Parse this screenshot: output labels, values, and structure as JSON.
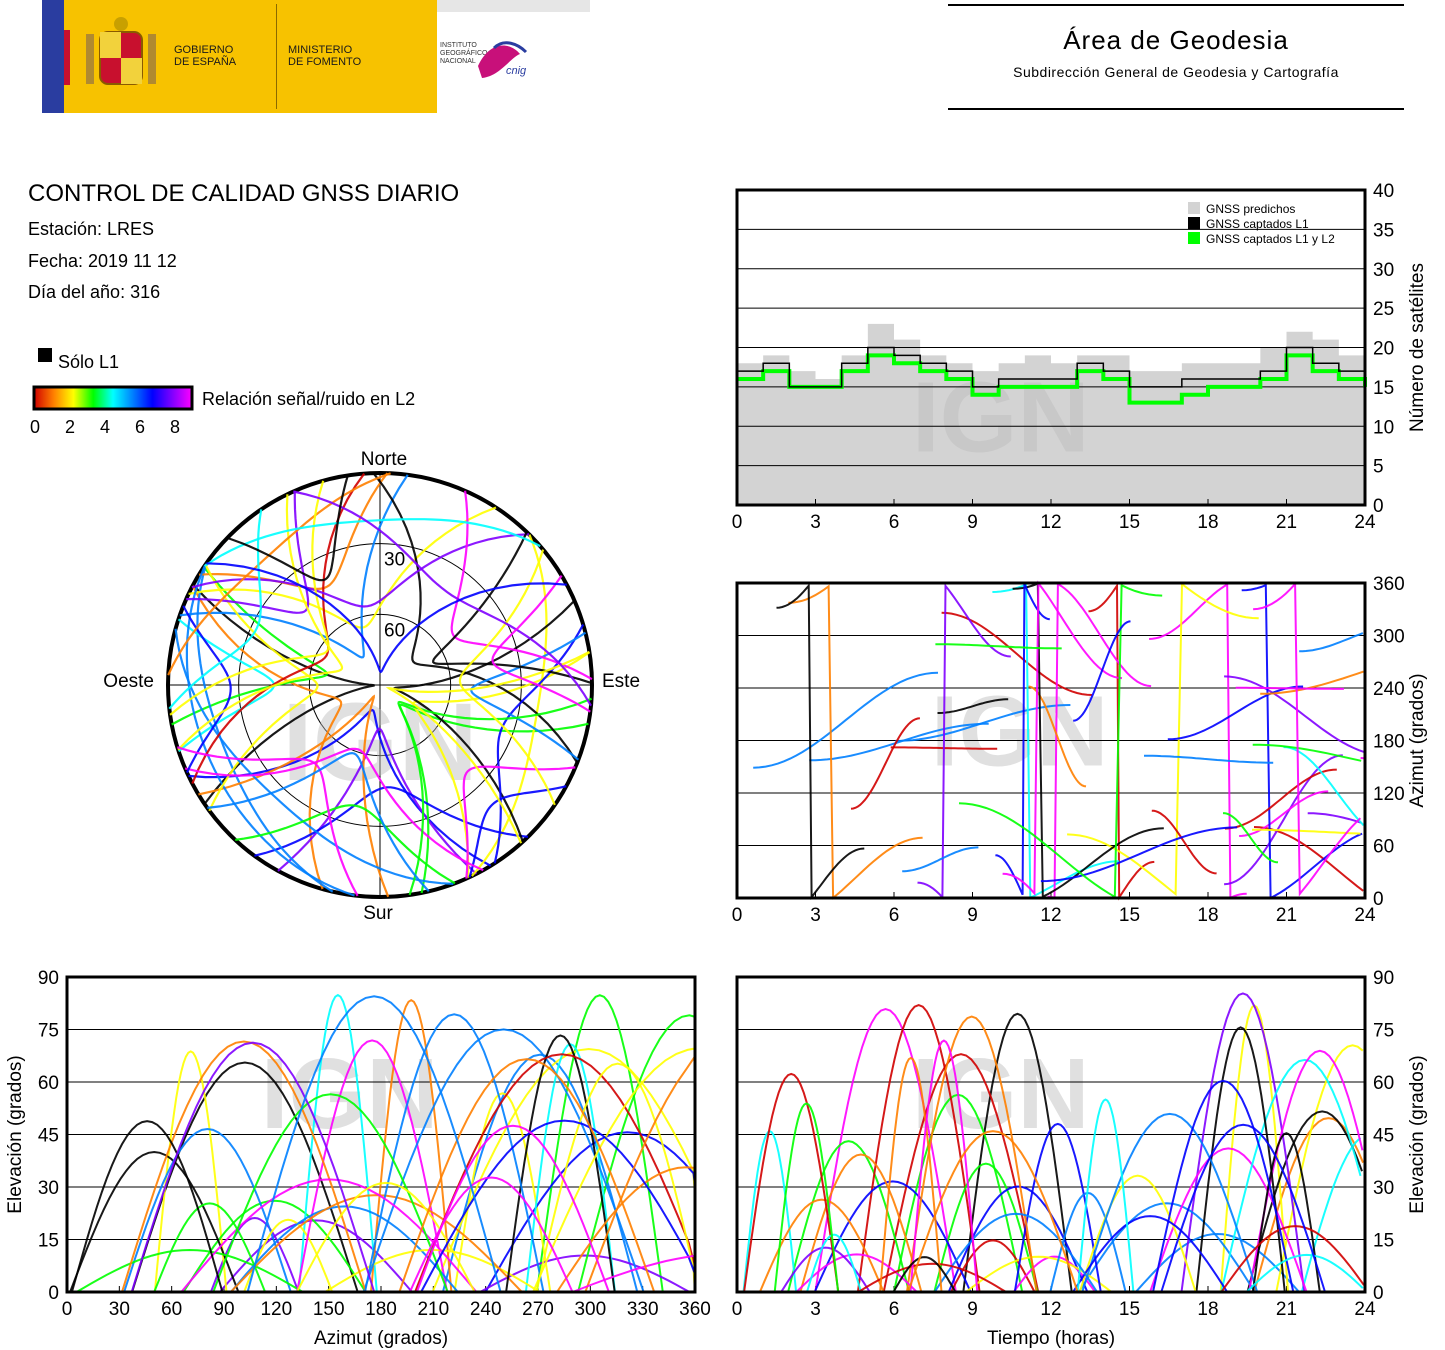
{
  "header": {
    "gov_line1": "GOBIERNO",
    "gov_line2": "DE ESPAÑA",
    "min_line1": "MINISTERIO",
    "min_line2": "DE FOMENTO",
    "inst_line1": "INSTITUTO",
    "inst_line2": "GEOGRÁFICO",
    "inst_line3": "NACIONAL",
    "cnig": "cnig",
    "area_title": "Área de Geodesia",
    "area_subtitle": "Subdirección General de Geodesia y Cartografía"
  },
  "report": {
    "title": "CONTROL DE CALIDAD GNSS DIARIO",
    "station": "Estación: LRES",
    "date": "Fecha: 2019 11 12",
    "doy": "Día del año: 316"
  },
  "legend": {
    "l1_only": "Sólo L1",
    "snr_label": "Relación señal/ruido en L2",
    "snr_ticks": [
      "0",
      "2",
      "4",
      "6",
      "8"
    ],
    "snr_colors": [
      "#d00000",
      "#ff8000",
      "#ffff00",
      "#00ff00",
      "#00ffff",
      "#0080ff",
      "#0000ff",
      "#8000ff",
      "#ff00ff"
    ]
  },
  "watermark": "IGN",
  "chart_data": [
    {
      "type": "area",
      "id": "satellites",
      "ylabel": "Número de satélites",
      "xlim": [
        0,
        24
      ],
      "ylim": [
        0,
        40
      ],
      "xticks": [
        "0",
        "3",
        "6",
        "9",
        "12",
        "15",
        "18",
        "21",
        "24"
      ],
      "yticks": [
        "0",
        "5",
        "10",
        "15",
        "20",
        "25",
        "30",
        "35",
        "40"
      ],
      "legend_position": "top-right",
      "x": [
        0,
        1,
        2,
        3,
        4,
        5,
        6,
        7,
        8,
        9,
        10,
        11,
        12,
        13,
        14,
        15,
        16,
        17,
        18,
        19,
        20,
        21,
        22,
        23,
        24
      ],
      "series": [
        {
          "name": "GNSS predichos",
          "color": "#d3d3d3",
          "values": [
            18,
            19,
            17,
            16,
            19,
            23,
            21,
            19,
            18,
            17,
            18,
            19,
            18,
            19,
            19,
            17,
            17,
            18,
            18,
            18,
            20,
            22,
            21,
            19,
            18
          ]
        },
        {
          "name": "GNSS captados L1",
          "color": "#000000",
          "values": [
            17,
            18,
            15,
            15,
            18,
            20,
            19,
            18,
            17,
            15,
            16,
            16,
            16,
            18,
            17,
            15,
            15,
            16,
            16,
            16,
            17,
            20,
            18,
            17,
            16
          ]
        },
        {
          "name": "GNSS captados L1 y L2",
          "color": "#00ff00",
          "values": [
            16,
            17,
            15,
            15,
            17,
            19,
            18,
            17,
            16,
            14,
            15,
            15,
            15,
            17,
            16,
            13,
            13,
            14,
            15,
            15,
            16,
            19,
            17,
            16,
            15
          ]
        }
      ]
    },
    {
      "type": "scatter",
      "id": "skyplot",
      "directions": {
        "north": "Norte",
        "south": "Sur",
        "east": "Este",
        "west": "Oeste"
      },
      "ring_labels": [
        "30",
        "60"
      ]
    },
    {
      "type": "scatter",
      "id": "azimuth_time",
      "ylabel": "Azimut (grados)",
      "xlim": [
        0,
        24
      ],
      "ylim": [
        0,
        360
      ],
      "xticks": [
        "0",
        "3",
        "6",
        "9",
        "12",
        "15",
        "18",
        "21",
        "24"
      ],
      "yticks": [
        "0",
        "60",
        "120",
        "180",
        "240",
        "300",
        "360"
      ]
    },
    {
      "type": "scatter",
      "id": "elevation_azimuth",
      "xlabel": "Azimut (grados)",
      "ylabel": "Elevación (grados)",
      "xlim": [
        0,
        360
      ],
      "ylim": [
        0,
        90
      ],
      "xticks": [
        "0",
        "30",
        "60",
        "90",
        "120",
        "150",
        "180",
        "210",
        "240",
        "270",
        "300",
        "330",
        "360"
      ],
      "yticks": [
        "0",
        "15",
        "30",
        "45",
        "60",
        "75",
        "90"
      ]
    },
    {
      "type": "scatter",
      "id": "elevation_time",
      "xlabel": "Tiempo (horas)",
      "ylabel": "Elevación (grados)",
      "xlim": [
        0,
        24
      ],
      "ylim": [
        0,
        90
      ],
      "xticks": [
        "0",
        "3",
        "6",
        "9",
        "12",
        "15",
        "18",
        "21",
        "24"
      ],
      "yticks": [
        "0",
        "15",
        "30",
        "45",
        "60",
        "75",
        "90"
      ]
    }
  ]
}
